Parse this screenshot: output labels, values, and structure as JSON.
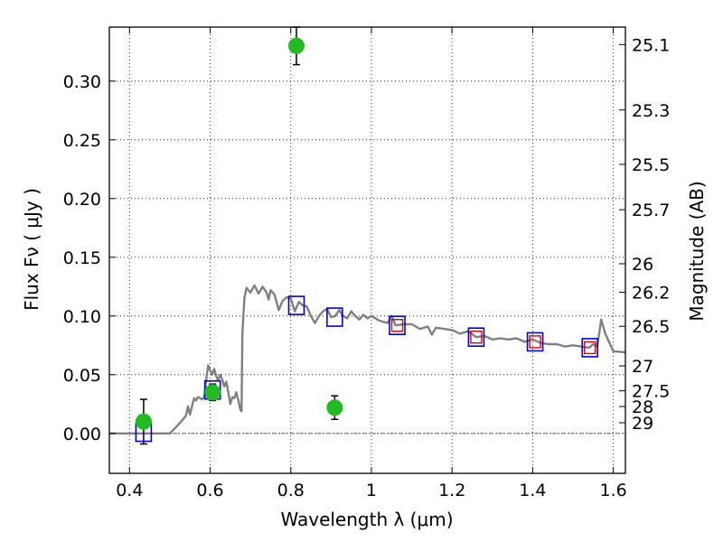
{
  "chart_data": {
    "type": "scatter",
    "title": "",
    "xlabel": "Wavelength  λ (μm)",
    "ylabel_left": "Flux  Fν  ( μJy )",
    "ylabel_right": "Magnitude (AB)",
    "xlim": [
      0.35,
      1.63
    ],
    "ylim": [
      -0.034,
      0.346
    ],
    "grid": true,
    "x_ticks": [
      {
        "value": 0.4,
        "label": "0.4"
      },
      {
        "value": 0.6,
        "label": "0.6"
      },
      {
        "value": 0.8,
        "label": "0.8"
      },
      {
        "value": 1.0,
        "label": "1"
      },
      {
        "value": 1.2,
        "label": "1.2"
      },
      {
        "value": 1.4,
        "label": "1.4"
      },
      {
        "value": 1.6,
        "label": "1.6"
      }
    ],
    "y_ticks": [
      {
        "value": 0.0,
        "label": "0.00"
      },
      {
        "value": 0.05,
        "label": "0.05"
      },
      {
        "value": 0.1,
        "label": "0.10"
      },
      {
        "value": 0.15,
        "label": "0.15"
      },
      {
        "value": 0.2,
        "label": "0.20"
      },
      {
        "value": 0.25,
        "label": "0.25"
      },
      {
        "value": 0.3,
        "label": "0.30"
      }
    ],
    "mag_ticks": [
      {
        "label": "25.1",
        "flux": 0.3311
      },
      {
        "label": "25.3",
        "flux": 0.2754
      },
      {
        "label": "25.5",
        "flux": 0.2291
      },
      {
        "label": "25.7",
        "flux": 0.1905
      },
      {
        "label": "26",
        "flux": 0.1445
      },
      {
        "label": "26.2",
        "flux": 0.1202
      },
      {
        "label": "26.5",
        "flux": 0.0912
      },
      {
        "label": "27",
        "flux": 0.0575
      },
      {
        "label": "27.5",
        "flux": 0.0363
      },
      {
        "label": "28",
        "flux": 0.0229
      },
      {
        "label": "29",
        "flux": 0.0091
      }
    ],
    "model_spectrum": {
      "color": "#808080",
      "x": [
        0.35,
        0.5,
        0.52,
        0.54,
        0.545,
        0.55,
        0.56,
        0.565,
        0.57,
        0.58,
        0.585,
        0.59,
        0.595,
        0.6,
        0.605,
        0.61,
        0.615,
        0.62,
        0.625,
        0.63,
        0.635,
        0.64,
        0.645,
        0.65,
        0.655,
        0.66,
        0.665,
        0.67,
        0.675,
        0.678,
        0.68,
        0.685,
        0.69,
        0.7,
        0.71,
        0.72,
        0.73,
        0.74,
        0.745,
        0.75,
        0.76,
        0.77,
        0.78,
        0.79,
        0.8,
        0.81,
        0.82,
        0.83,
        0.84,
        0.85,
        0.86,
        0.87,
        0.88,
        0.89,
        0.9,
        0.91,
        0.92,
        0.93,
        0.94,
        0.95,
        0.96,
        0.97,
        0.98,
        0.99,
        1.0,
        1.02,
        1.04,
        1.05,
        1.06,
        1.08,
        1.1,
        1.12,
        1.14,
        1.15,
        1.16,
        1.18,
        1.2,
        1.22,
        1.24,
        1.26,
        1.28,
        1.3,
        1.32,
        1.34,
        1.36,
        1.38,
        1.4,
        1.42,
        1.44,
        1.46,
        1.48,
        1.5,
        1.52,
        1.54,
        1.55,
        1.56,
        1.565,
        1.57,
        1.58,
        1.6,
        1.63
      ],
      "y": [
        0.0,
        0.0,
        0.007,
        0.015,
        0.023,
        0.016,
        0.03,
        0.028,
        0.031,
        0.029,
        0.031,
        0.045,
        0.058,
        0.054,
        0.05,
        0.055,
        0.049,
        0.045,
        0.05,
        0.046,
        0.04,
        0.044,
        0.035,
        0.025,
        0.031,
        0.03,
        0.035,
        0.028,
        0.02,
        0.019,
        0.085,
        0.115,
        0.124,
        0.12,
        0.126,
        0.119,
        0.125,
        0.12,
        0.114,
        0.122,
        0.118,
        0.105,
        0.113,
        0.116,
        0.115,
        0.104,
        0.112,
        0.109,
        0.108,
        0.1,
        0.094,
        0.1,
        0.104,
        0.106,
        0.099,
        0.1,
        0.105,
        0.1,
        0.098,
        0.104,
        0.1,
        0.097,
        0.101,
        0.098,
        0.1,
        0.096,
        0.094,
        0.1,
        0.092,
        0.093,
        0.093,
        0.089,
        0.091,
        0.084,
        0.09,
        0.089,
        0.088,
        0.085,
        0.087,
        0.082,
        0.083,
        0.08,
        0.081,
        0.08,
        0.081,
        0.078,
        0.08,
        0.077,
        0.076,
        0.076,
        0.074,
        0.075,
        0.074,
        0.073,
        0.076,
        0.074,
        0.085,
        0.097,
        0.085,
        0.07,
        0.069
      ]
    },
    "observed_points": {
      "color": "#22bb22",
      "x": [
        0.435,
        0.606,
        0.814,
        0.909
      ],
      "y": [
        0.01,
        0.035,
        0.33,
        0.022
      ],
      "yerr": [
        0.019,
        0.007,
        0.016,
        0.01
      ]
    },
    "model_points": {
      "color": "#0000dd",
      "x": [
        0.435,
        0.606,
        0.814,
        0.909,
        1.064,
        1.26,
        1.406,
        1.542
      ],
      "y": [
        0.001,
        0.037,
        0.109,
        0.099,
        0.092,
        0.082,
        0.078,
        0.073
      ]
    },
    "ir_points": {
      "color": "#dd0000",
      "x": [
        1.064,
        1.26,
        1.406,
        1.542
      ],
      "y": [
        0.092,
        0.082,
        0.078,
        0.073
      ]
    }
  }
}
